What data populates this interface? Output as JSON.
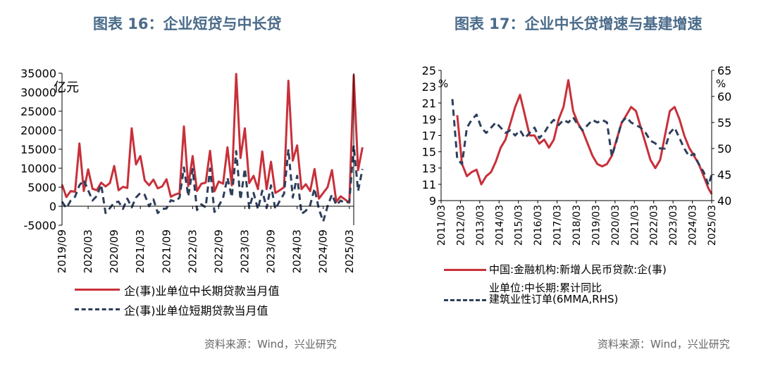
{
  "left": {
    "title": "图表 16：企业短贷与中长贷",
    "source": "资料来源：Wind，兴业研究",
    "unit": "亿元",
    "legend": [
      "企(事)业单位中长期贷款当月值",
      "企(事)业单位短期贷款当月值"
    ],
    "colors": {
      "long": "#c8303a",
      "short": "#2e3f5c"
    }
  },
  "right": {
    "title": "图表 17：企业中长贷增速与基建增速",
    "source": "资料来源：Wind，兴业研究",
    "unit_left": "%",
    "unit_right": "%",
    "legend": [
      "中国:金融机构:新增人民币贷款:企(事)",
      "业单位:中长期:累计同比",
      "建筑业性订单(6MMA,RHS)"
    ],
    "colors": {
      "loan": "#c8303a",
      "infra": "#2e3f5c"
    }
  },
  "chart_data": [
    {
      "type": "line",
      "title": "图表 16：企业短贷与中长贷",
      "ylabel": "亿元",
      "ylim": [
        -5000,
        35000
      ],
      "yticks": [
        "35000",
        "30000",
        "25000",
        "20000",
        "15000",
        "10000",
        "5000",
        "0",
        "-5000"
      ],
      "xticks": [
        "2019/09",
        "2020/03",
        "2020/09",
        "2021/03",
        "2021/09",
        "2022/03",
        "2022/09",
        "2023/03",
        "2023/09",
        "2024/03",
        "2024/09",
        "2025/03"
      ],
      "x_start": "2019/09",
      "x_end": "2025/04",
      "series": [
        {
          "name": "企(事)业单位中长期贷款当月值",
          "values": [
            5700,
            2400,
            4000,
            3800,
            16500,
            4000,
            9700,
            4600,
            4200,
            6200,
            5200,
            6100,
            10600,
            4200,
            5100,
            4800,
            20500,
            11000,
            13200,
            6800,
            5500,
            7000,
            4700,
            5200,
            7100,
            2500,
            3100,
            3400,
            21000,
            5300,
            13200,
            4000,
            5900,
            6200,
            14600,
            3900,
            6500,
            5900,
            15500,
            5500,
            34800,
            12700,
            20500,
            6100,
            8000,
            4500,
            14400,
            4500,
            11700,
            3500,
            4200,
            5000,
            33000,
            12000,
            16000,
            4500,
            5800,
            4000,
            9800,
            2000,
            3500,
            5000,
            9500,
            1200,
            2600,
            1800,
            900,
            34500,
            9500,
            15500
          ]
        },
        {
          "name": "企(事)业单位短期贷款当月值",
          "values": [
            1200,
            -500,
            1500,
            2500,
            5500,
            6900,
            4200,
            1500,
            2700,
            5700,
            -1800,
            -500,
            1000,
            1200,
            -700,
            2000,
            -300,
            2300,
            3500,
            3000,
            0,
            1800,
            -1800,
            -700,
            -600,
            1600,
            1200,
            2300,
            10200,
            2600,
            9800,
            -1000,
            500,
            -300,
            9900,
            -1500,
            100,
            2200,
            7500,
            2400,
            14500,
            1700,
            9900,
            -500,
            3500,
            -800,
            4100,
            -500,
            5500,
            -800,
            1400,
            3300,
            15000,
            2300,
            8000,
            -2000,
            -1200,
            300,
            4700,
            -800,
            -4000,
            0,
            3100,
            300,
            1500,
            800,
            1200,
            16000,
            4000,
            9800
          ]
        }
      ]
    },
    {
      "type": "line",
      "title": "图表 17：企业中长贷增速与基建增速",
      "ylabel": "%",
      "ylim": [
        9,
        25
      ],
      "y2label": "%",
      "y2lim": [
        40,
        65
      ],
      "yticks": [
        "25",
        "23",
        "21",
        "19",
        "17",
        "15",
        "13",
        "11",
        "9"
      ],
      "y2ticks": [
        "65",
        "60",
        "55",
        "50",
        "45",
        "40"
      ],
      "xticks": [
        "2011/03",
        "2012/03",
        "2013/03",
        "2014/03",
        "2015/03",
        "2016/03",
        "2017/03",
        "2018/03",
        "2019/03",
        "2020/03",
        "2021/03",
        "2022/03",
        "2023/03",
        "2024/03",
        "2025/03"
      ],
      "x_start": "2011/03",
      "x_end": "2025/03",
      "series": [
        {
          "name": "中国:金融机构:新增人民币贷款:企(事)业单位:中长期:累计同比",
          "axis": "left",
          "x": [
            2012.0,
            2012.25,
            2012.5,
            2012.75,
            2013.0,
            2013.25,
            2013.5,
            2013.75,
            2014.0,
            2014.25,
            2014.5,
            2014.75,
            2015.0,
            2015.25,
            2015.5,
            2015.75,
            2016.0,
            2016.25,
            2016.5,
            2016.75,
            2017.0,
            2017.25,
            2017.5,
            2017.75,
            2018.0,
            2018.25,
            2018.5,
            2018.75,
            2019.0,
            2019.25,
            2019.5,
            2019.75,
            2020.0,
            2020.25,
            2020.5,
            2020.75,
            2021.0,
            2021.25,
            2021.5,
            2021.75,
            2022.0,
            2022.25,
            2022.5,
            2022.75,
            2023.0,
            2023.25,
            2023.5,
            2023.75,
            2024.0,
            2024.25,
            2024.5,
            2024.75,
            2025.0,
            2025.17
          ],
          "values": [
            19.5,
            13.5,
            12.0,
            12.5,
            12.8,
            11.0,
            12.0,
            12.5,
            13.8,
            15.5,
            16.5,
            18.5,
            20.5,
            22.0,
            19.5,
            17.0,
            17.0,
            16.0,
            16.5,
            15.5,
            16.5,
            19.0,
            20.5,
            23.8,
            20.0,
            18.5,
            17.5,
            16.0,
            14.5,
            13.5,
            13.2,
            13.5,
            14.5,
            16.5,
            18.5,
            19.5,
            20.5,
            20.0,
            18.0,
            16.0,
            14.0,
            13.0,
            14.0,
            17.0,
            20.0,
            20.5,
            19.0,
            17.0,
            15.5,
            14.5,
            13.5,
            12.0,
            10.5,
            9.8
          ]
        },
        {
          "name": "建筑业性订单(6MMA,RHS)",
          "axis": "right",
          "x": [
            2011.75,
            2012.0,
            2012.25,
            2012.5,
            2012.75,
            2013.0,
            2013.25,
            2013.5,
            2013.75,
            2014.0,
            2014.25,
            2014.5,
            2014.75,
            2015.0,
            2015.25,
            2015.5,
            2015.75,
            2016.0,
            2016.25,
            2016.5,
            2016.75,
            2017.0,
            2017.25,
            2017.5,
            2017.75,
            2018.0,
            2018.25,
            2018.5,
            2018.75,
            2019.0,
            2019.25,
            2019.5,
            2019.75,
            2020.0,
            2020.25,
            2020.5,
            2020.75,
            2021.0,
            2021.25,
            2021.5,
            2021.75,
            2022.0,
            2022.25,
            2022.5,
            2022.75,
            2023.0,
            2023.25,
            2023.5,
            2023.75,
            2024.0,
            2024.25,
            2024.5,
            2024.75,
            2025.0,
            2025.17
          ],
          "values": [
            59.5,
            48.0,
            47.0,
            54.0,
            55.5,
            56.5,
            54.0,
            53.0,
            54.0,
            55.0,
            54.0,
            53.0,
            53.5,
            52.5,
            53.5,
            52.0,
            53.0,
            54.0,
            52.0,
            53.0,
            54.5,
            55.5,
            54.5,
            55.5,
            55.0,
            56.0,
            54.5,
            53.5,
            54.5,
            55.5,
            55.0,
            55.5,
            55.0,
            48.5,
            51.5,
            55.0,
            56.0,
            55.0,
            54.5,
            54.0,
            53.0,
            51.5,
            51.0,
            50.0,
            50.0,
            53.0,
            54.0,
            52.0,
            50.0,
            48.5,
            49.0,
            47.0,
            45.5,
            43.0,
            45.0
          ]
        }
      ]
    }
  ]
}
